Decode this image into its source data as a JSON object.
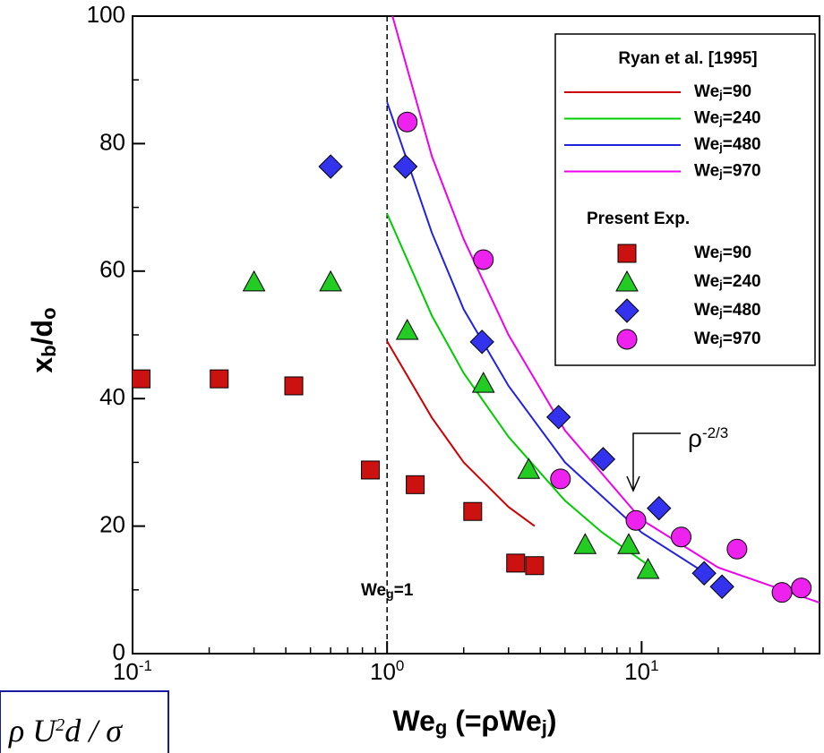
{
  "chart_data": {
    "type": "scatter",
    "x_label": "Weg  (=ρWej)",
    "y_label": "xb/do",
    "xlim": [
      0.1,
      50
    ],
    "ylim": [
      0,
      100
    ],
    "log_x": true,
    "xticks": [
      {
        "value": 0.1,
        "label": "10-1"
      },
      {
        "value": 1,
        "label": "100"
      },
      {
        "value": 10,
        "label": "101"
      }
    ],
    "xminorticks": [
      0.2,
      0.3,
      0.4,
      0.5,
      0.6,
      0.7,
      0.8,
      0.9,
      2,
      3,
      4,
      5,
      6,
      7,
      8,
      9,
      20,
      30,
      40
    ],
    "yticks": [
      0,
      20,
      40,
      60,
      80,
      100
    ],
    "yminorticks": [
      10,
      30,
      50,
      70,
      90
    ],
    "vline": 1,
    "vline_label": "Weg=1",
    "annotation": "ρ-2/3",
    "formula": "ρ U2d  / σ",
    "legend_groups": [
      "Ryan et al. [1995]",
      "Present Exp."
    ],
    "series": [
      {
        "name": "Wej=90",
        "group": 0,
        "mode": "line",
        "color": "#cc0000",
        "x": [
          1,
          1.5,
          2,
          3,
          3.8
        ],
        "values": [
          49,
          37,
          30,
          23,
          20
        ]
      },
      {
        "name": "Wej=240",
        "group": 0,
        "mode": "line",
        "color": "#00cc00",
        "x": [
          1,
          1.5,
          2,
          3,
          5,
          7,
          10.5
        ],
        "values": [
          69,
          53,
          44,
          34,
          24,
          19,
          14
        ]
      },
      {
        "name": "Wej=480",
        "group": 0,
        "mode": "line",
        "color": "#2222dd",
        "x": [
          1,
          1.5,
          2,
          3,
          5,
          10,
          18
        ],
        "values": [
          86.5,
          66,
          54,
          42,
          30,
          19,
          12.5
        ]
      },
      {
        "name": "Wej=970",
        "group": 0,
        "mode": "line",
        "color": "#ee00ee",
        "x": [
          1.05,
          1.5,
          2,
          3,
          5,
          10,
          20,
          50
        ],
        "values": [
          100,
          78,
          65,
          50,
          35,
          21,
          13.5,
          8
        ]
      },
      {
        "name": "Wej=90",
        "group": 1,
        "mode": "scatter",
        "marker": "square",
        "color": "#cc1111",
        "x": [
          0.108,
          0.219,
          0.43,
          0.86,
          1.29,
          2.17,
          3.2,
          3.8
        ],
        "values": [
          43.1,
          43.1,
          42,
          28.8,
          26.5,
          22.3,
          14.2,
          13.8
        ]
      },
      {
        "name": "Wej=240",
        "group": 1,
        "mode": "scatter",
        "marker": "triangle",
        "color": "#22cc22",
        "x": [
          0.3,
          0.6,
          1.2,
          2.39,
          3.6,
          6,
          8.9,
          10.6
        ],
        "values": [
          58.3,
          58.3,
          50.7,
          42.4,
          28.9,
          17.1,
          17.1,
          13.2
        ]
      },
      {
        "name": "Wej=480",
        "group": 1,
        "mode": "scatter",
        "marker": "diamond",
        "color": "#3333ee",
        "x": [
          0.6,
          1.18,
          2.36,
          4.72,
          7.06,
          11.7,
          17.6,
          20.7
        ],
        "values": [
          76.4,
          76.4,
          48.9,
          37.1,
          30.5,
          22.8,
          12.6,
          10.5
        ]
      },
      {
        "name": "Wej=970",
        "group": 1,
        "mode": "scatter",
        "marker": "circle",
        "color": "#ee22ee",
        "x": [
          1.2,
          2.39,
          4.8,
          9.5,
          14.3,
          23.7,
          35.6,
          42.4
        ],
        "values": [
          83.4,
          61.8,
          27.4,
          20.9,
          18.3,
          16.4,
          9.6,
          10.3
        ]
      }
    ]
  }
}
